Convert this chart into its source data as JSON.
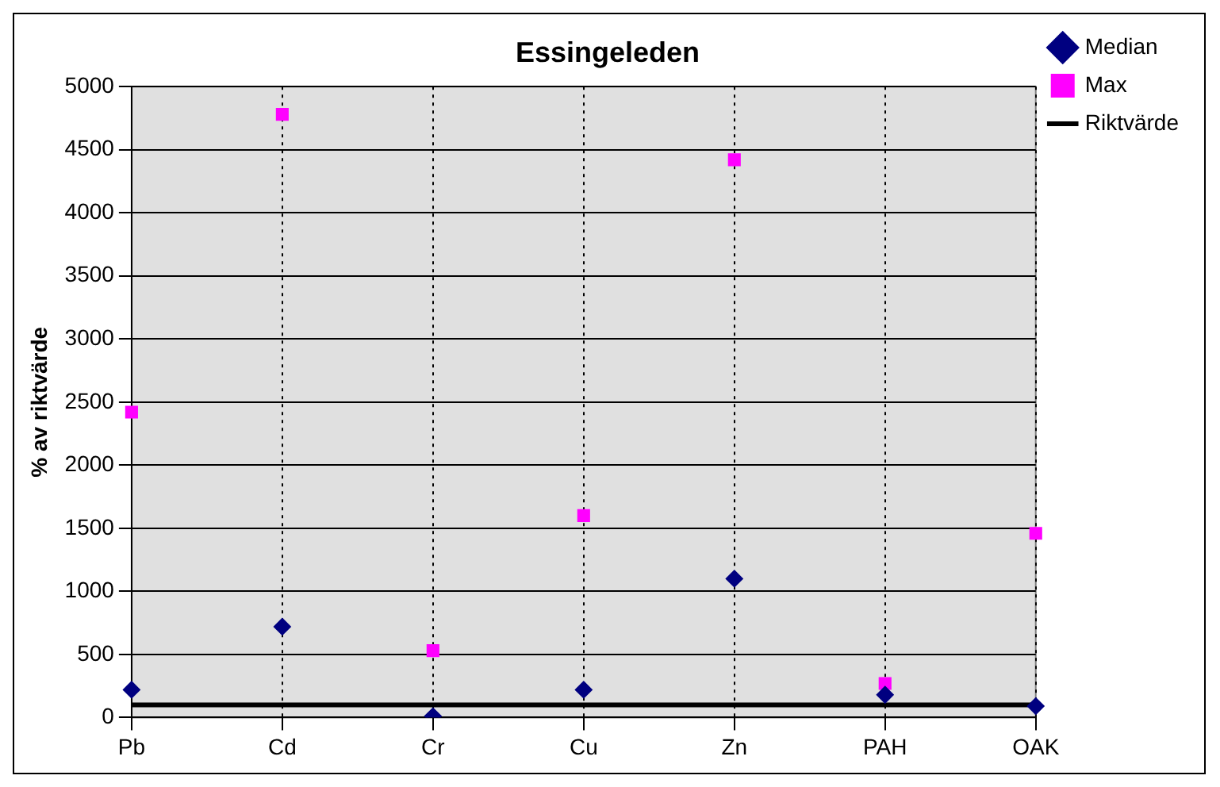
{
  "chart_data": {
    "type": "scatter",
    "title": "Essingeleden",
    "ylabel": "% av riktvärde",
    "categories": [
      "Pb",
      "Cd",
      "Cr",
      "Cu",
      "Zn",
      "PAH",
      "OAK"
    ],
    "series": [
      {
        "name": "Median",
        "type": "scatter",
        "color": "#000080",
        "marker": "diamond",
        "values": [
          220,
          720,
          10,
          220,
          1100,
          180,
          90
        ]
      },
      {
        "name": "Max",
        "type": "scatter",
        "color": "#ff00ff",
        "marker": "square",
        "values": [
          2420,
          4780,
          530,
          1600,
          4420,
          270,
          1460
        ]
      },
      {
        "name": "Riktvärde",
        "type": "line",
        "color": "#000000",
        "marker": "none",
        "line_style": "solid",
        "values": [
          100,
          100,
          100,
          100,
          100,
          100,
          100
        ]
      }
    ],
    "ylim": [
      0,
      5000
    ],
    "yticks": [
      0,
      500,
      1000,
      1500,
      2000,
      2500,
      3000,
      3500,
      4000,
      4500,
      5000
    ],
    "grid": true,
    "legend": "top right"
  }
}
